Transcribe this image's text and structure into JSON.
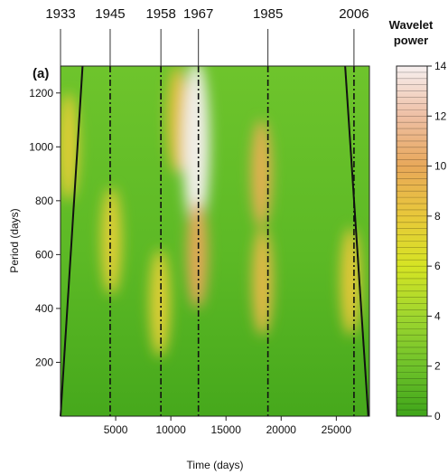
{
  "chart_data": {
    "type": "heatmap",
    "panel_label": "(a)",
    "xlabel": "Time (days)",
    "ylabel": "Period (days)",
    "xlim": [
      0,
      28000
    ],
    "ylim": [
      0,
      1300
    ],
    "x_ticks": [
      5000,
      10000,
      15000,
      20000,
      25000
    ],
    "y_ticks": [
      200,
      400,
      600,
      800,
      1000,
      1200
    ],
    "year_markers": [
      {
        "label": "1933",
        "day": 0
      },
      {
        "label": "1945",
        "day": 4500
      },
      {
        "label": "1958",
        "day": 9100
      },
      {
        "label": "1967",
        "day": 12500
      },
      {
        "label": "1985",
        "day": 18800
      },
      {
        "label": "2006",
        "day": 26600
      }
    ],
    "cone_of_influence": {
      "left": [
        [
          0,
          0
        ],
        [
          2000,
          1300
        ]
      ],
      "right": [
        [
          25800,
          1300
        ],
        [
          27900,
          0
        ]
      ]
    },
    "colorbar": {
      "title_lines": [
        "Wavelet",
        "power"
      ],
      "range": [
        0,
        14
      ],
      "ticks": [
        0,
        2,
        4,
        6,
        8,
        10,
        12,
        14
      ],
      "colors": [
        "#3fa51a",
        "#6fc22a",
        "#9fd62e",
        "#d6e424",
        "#e8c83a",
        "#e8a85a",
        "#eebfa4",
        "#f7f0f0"
      ]
    },
    "power_peaks": [
      {
        "day": 700,
        "period": 1000,
        "power": 7.5
      },
      {
        "day": 4600,
        "period": 650,
        "power": 7.5
      },
      {
        "day": 9000,
        "period": 420,
        "power": 7.5
      },
      {
        "day": 10600,
        "period": 1100,
        "power": 8.5
      },
      {
        "day": 12300,
        "period": 1000,
        "power": 14
      },
      {
        "day": 12400,
        "period": 600,
        "power": 10
      },
      {
        "day": 18200,
        "period": 900,
        "power": 9.5
      },
      {
        "day": 18300,
        "period": 500,
        "power": 9
      },
      {
        "day": 26300,
        "period": 500,
        "power": 8
      }
    ]
  }
}
